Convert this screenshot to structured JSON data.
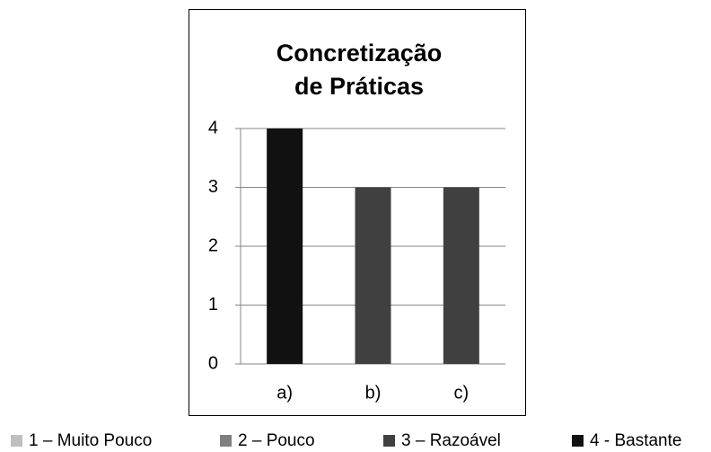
{
  "chart_data": {
    "type": "bar",
    "title": [
      "Concretização",
      "de Práticas"
    ],
    "categories": [
      "a)",
      "b)",
      "c)"
    ],
    "values": [
      4,
      3,
      3
    ],
    "colors": [
      "#111111",
      "#404040",
      "#404040"
    ],
    "ylim": [
      0,
      4
    ],
    "yticks": [
      0,
      1,
      2,
      3,
      4
    ],
    "grid": true,
    "legend": [
      {
        "name": "1 – Muito Pouco",
        "color": "#bfbfbf"
      },
      {
        "name": "2 – Pouco",
        "color": "#7f7f7f"
      },
      {
        "name": "3 – Razoável",
        "color": "#404040"
      },
      {
        "name": "4 - Bastante",
        "color": "#111111"
      }
    ]
  }
}
